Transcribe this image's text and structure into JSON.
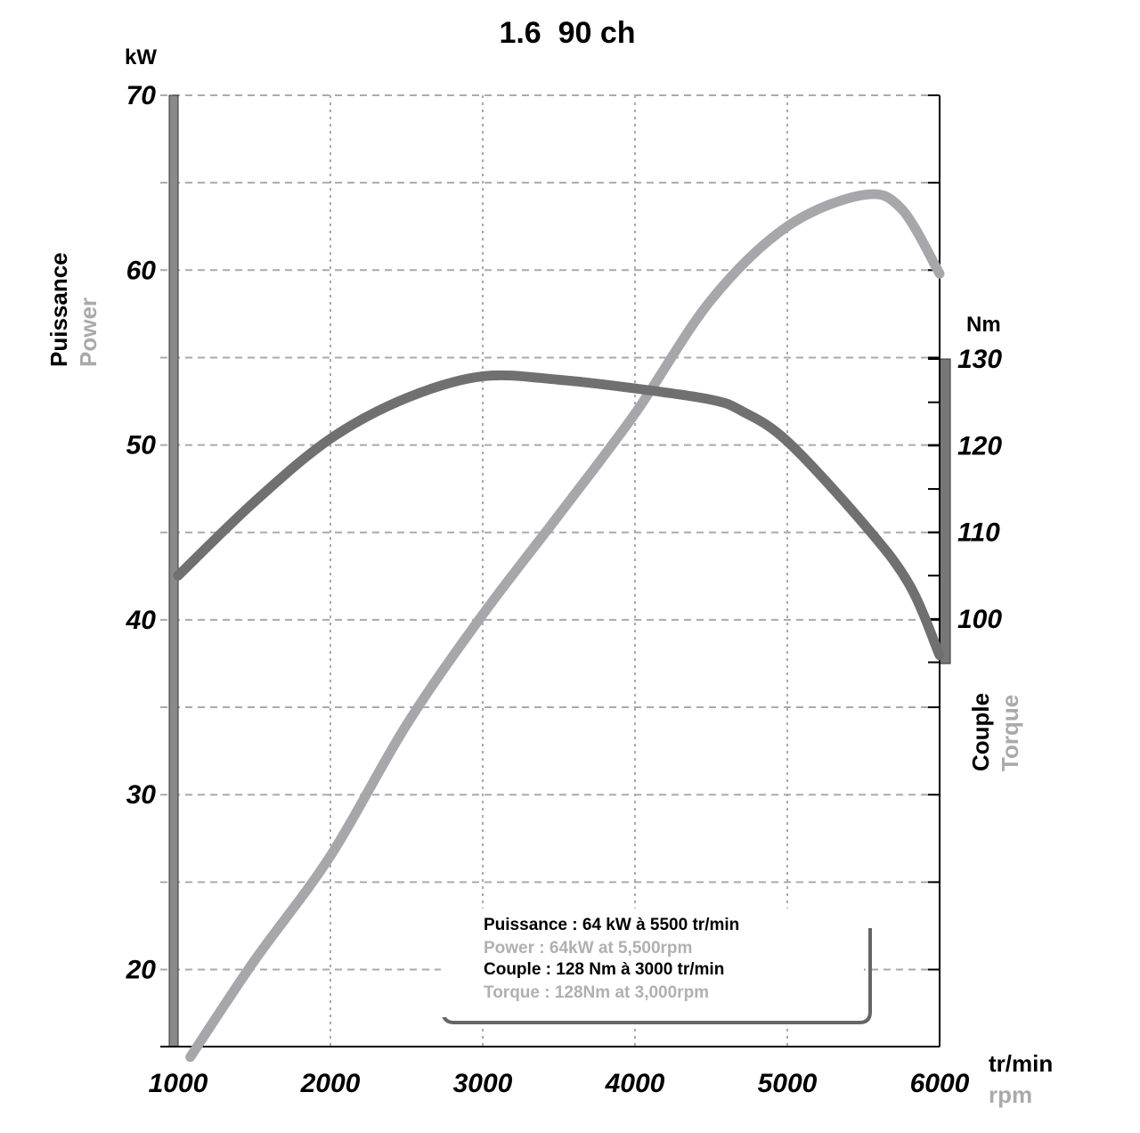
{
  "chart_data": {
    "type": "line",
    "title": "1.6  90 ch",
    "xlabel": "tr/min",
    "xlabel2": "rpm",
    "xlim": [
      1000,
      6000
    ],
    "xticks": [
      "1000",
      "2000",
      "3000",
      "4000",
      "5000",
      "6000"
    ],
    "y_left": {
      "unit": "kW",
      "label": "Puissance",
      "label2": "Power",
      "ylim": [
        15,
        70
      ],
      "ticks": [
        "20",
        "30",
        "40",
        "50",
        "60",
        "70"
      ]
    },
    "y_right": {
      "unit": "Nm",
      "label": "Couple",
      "label2": "Torque",
      "ylim": [
        95,
        130
      ],
      "ticks": [
        "100",
        "110",
        "120",
        "130"
      ]
    },
    "grid": true,
    "series": [
      {
        "name": "Puissance",
        "axis": "left",
        "color": "#a7a6ab",
        "x": [
          1080,
          1500,
          2000,
          2500,
          3000,
          3500,
          4000,
          4500,
          5000,
          5500,
          5750,
          6000
        ],
        "y": [
          15,
          20.5,
          26.5,
          34,
          40.3,
          46,
          51.8,
          58.3,
          62.5,
          64.3,
          63.5,
          59.8
        ]
      },
      {
        "name": "Couple",
        "axis": "right",
        "color": "#707070",
        "x": [
          1000,
          1500,
          2000,
          2500,
          3000,
          3500,
          4000,
          4500,
          4700,
          5000,
          5500,
          5800,
          6000
        ],
        "y": [
          105,
          113.5,
          120.8,
          125.5,
          128,
          127.6,
          126.6,
          125.3,
          124,
          120.5,
          111,
          104,
          95.8
        ]
      }
    ],
    "legend": {
      "lines": [
        "Puissance : 64 kW à 5500 tr/min",
        "Power : 64kW at 5,500rpm",
        "Couple : 128 Nm à 3000 tr/min",
        "Torque : 128Nm at 3,000rpm"
      ],
      "placement": "bottom-center"
    }
  }
}
